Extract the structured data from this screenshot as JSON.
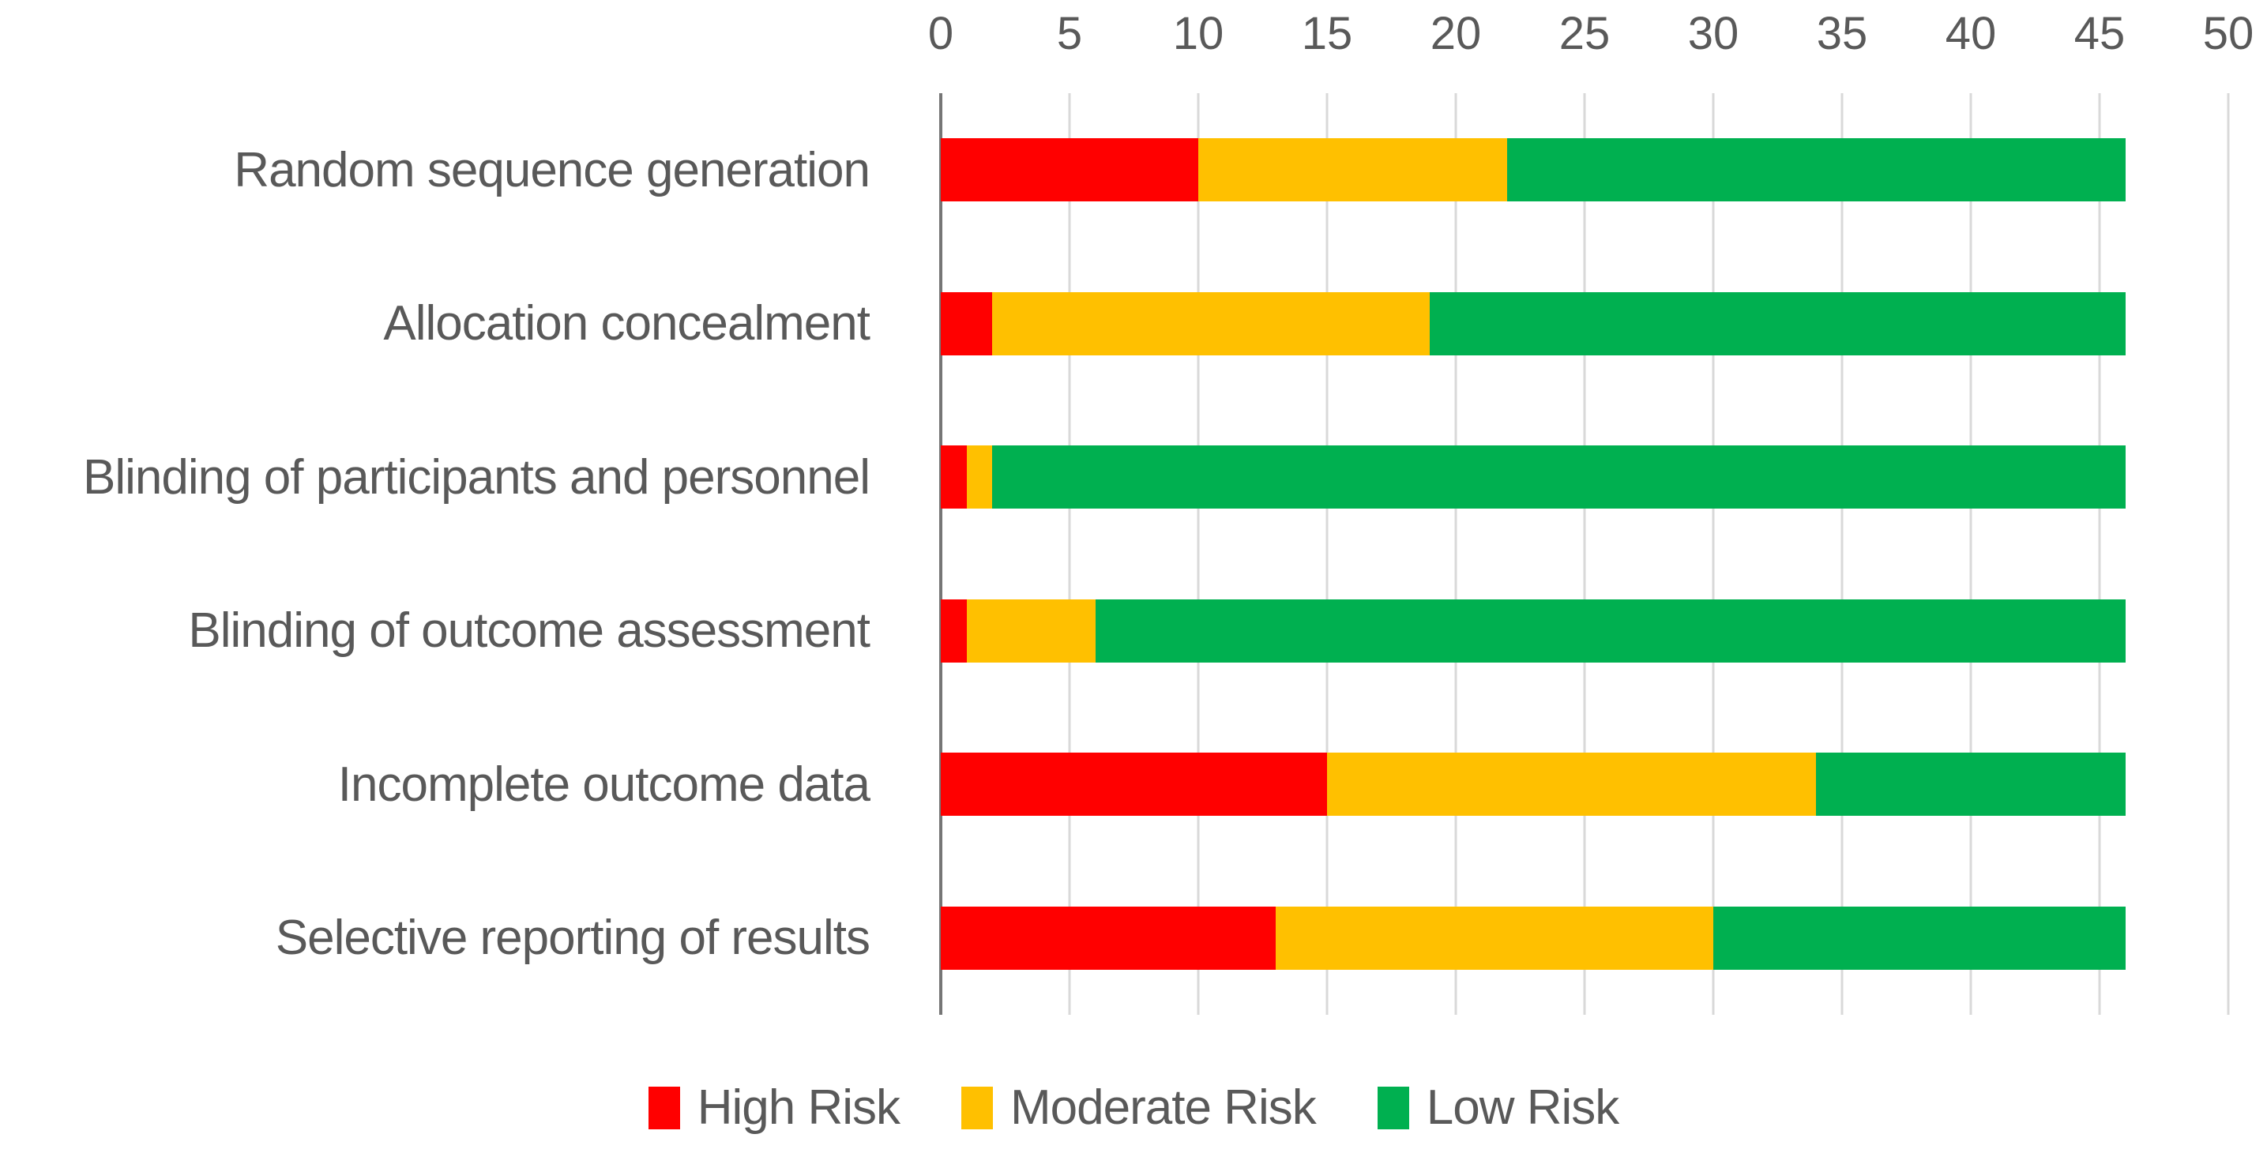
{
  "chart_data": {
    "type": "bar",
    "orientation": "horizontal-stacked",
    "categories": [
      "Random sequence generation",
      "Allocation concealment",
      "Blinding of participants and personnel",
      "Blinding of outcome assessment",
      "Incomplete outcome data",
      "Selective reporting of results"
    ],
    "series": [
      {
        "name": "High Risk",
        "color": "#ff0000",
        "values": [
          10,
          2,
          1,
          1,
          15,
          13
        ]
      },
      {
        "name": "Moderate Risk",
        "color": "#ffc000",
        "values": [
          12,
          17,
          1,
          5,
          19,
          17
        ]
      },
      {
        "name": "Low Risk",
        "color": "#00b050",
        "values": [
          24,
          27,
          44,
          40,
          12,
          16
        ]
      }
    ],
    "bar_totals": [
      46,
      46,
      46,
      46,
      46,
      46
    ],
    "x_ticks": [
      0,
      5,
      10,
      15,
      20,
      25,
      30,
      35,
      40,
      45,
      50
    ],
    "xlim": [
      0,
      50
    ],
    "grid": true,
    "legend_position": "bottom"
  },
  "styles": {
    "grid_color": "#d9d9d9",
    "axis_line_color": "#767676",
    "text_color": "#595959",
    "background": "#ffffff"
  }
}
